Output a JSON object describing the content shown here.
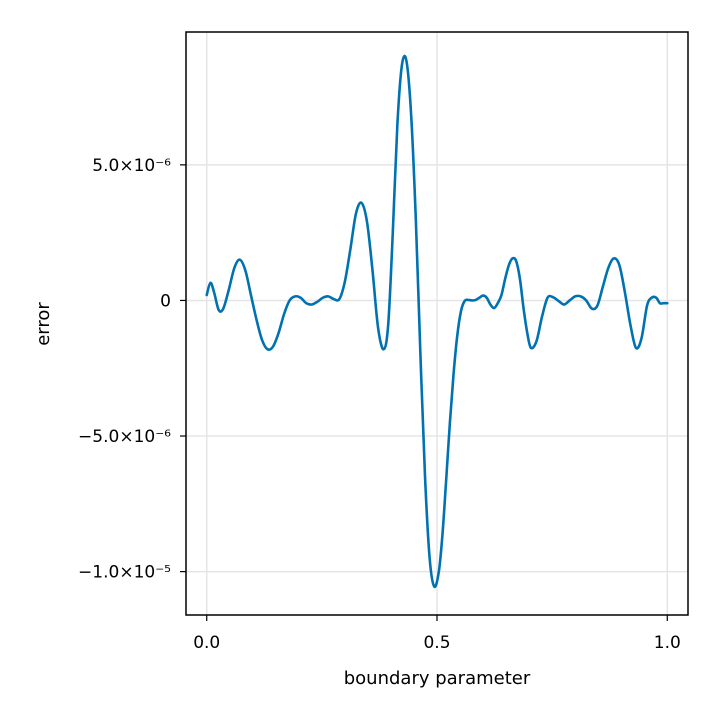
{
  "chart_data": {
    "type": "line",
    "title": "",
    "xlabel": "boundary parameter",
    "ylabel": "error",
    "xlim": [
      -0.045,
      1.045
    ],
    "ylim": [
      -1.16e-05,
      9.9e-06
    ],
    "grid": true,
    "x_ticks": [
      {
        "value": 0.0,
        "label": "0.0"
      },
      {
        "value": 0.5,
        "label": "0.5"
      },
      {
        "value": 1.0,
        "label": "1.0"
      }
    ],
    "y_ticks": [
      {
        "value": 5e-06,
        "label": "5.0×10⁻⁶"
      },
      {
        "value": 0,
        "label": "0"
      },
      {
        "value": -5e-06,
        "label": "−5.0×10⁻⁶"
      },
      {
        "value": -1e-05,
        "label": "−1.0×10⁻⁵"
      }
    ],
    "line_color": "#0072b2",
    "grid_color": "#e5e5e5",
    "series": [
      {
        "x": [
          0.0,
          0.008,
          0.016,
          0.026,
          0.036,
          0.048,
          0.06,
          0.072,
          0.084,
          0.096,
          0.108,
          0.12,
          0.132,
          0.144,
          0.156,
          0.168,
          0.18,
          0.192,
          0.204,
          0.216,
          0.228,
          0.24,
          0.252,
          0.264,
          0.276,
          0.288,
          0.3,
          0.312,
          0.324,
          0.336,
          0.348,
          0.36,
          0.372,
          0.384,
          0.394,
          0.404,
          0.414,
          0.424,
          0.434,
          0.444,
          0.454,
          0.464,
          0.474,
          0.484,
          0.494,
          0.504,
          0.512,
          0.52,
          0.528,
          0.536,
          0.544,
          0.552,
          0.56,
          0.568,
          0.576,
          0.584,
          0.592,
          0.6,
          0.608,
          0.616,
          0.624,
          0.632,
          0.64,
          0.648,
          0.656,
          0.664,
          0.672,
          0.68,
          0.688,
          0.696,
          0.704,
          0.716,
          0.728,
          0.74,
          0.752,
          0.764,
          0.776,
          0.788,
          0.8,
          0.812,
          0.824,
          0.836,
          0.848,
          0.86,
          0.872,
          0.884,
          0.896,
          0.908,
          0.92,
          0.932,
          0.944,
          0.956,
          0.966,
          0.976,
          0.984,
          0.992,
          1.0
        ],
        "y": [
          2e-07,
          6.5e-07,
          3e-07,
          -3.5e-07,
          -3e-07,
          4e-07,
          1.2e-06,
          1.5e-06,
          1.1e-06,
          2e-07,
          -7e-07,
          -1.45e-06,
          -1.8e-06,
          -1.7e-06,
          -1.2e-06,
          -5e-07,
          0.0,
          1.5e-07,
          1e-07,
          -1e-07,
          -1.5e-07,
          -5e-08,
          1e-07,
          1.5e-07,
          5e-08,
          5e-08,
          7e-07,
          1.9e-06,
          3.2e-06,
          3.6e-06,
          2.9e-06,
          1.1e-06,
          -1e-06,
          -1.8e-06,
          -9e-07,
          2.5e-06,
          6.5e-06,
          8.7e-06,
          8.8e-06,
          6.8e-06,
          3e-06,
          -2e-06,
          -6.5e-06,
          -9.5e-06,
          -1.055e-05,
          -1e-05,
          -8.6e-06,
          -6.6e-06,
          -4.5e-06,
          -2.7e-06,
          -1.3e-06,
          -4e-07,
          -2e-08,
          2e-08,
          0.0,
          2e-08,
          1e-07,
          1.8e-07,
          1e-07,
          -1.5e-07,
          -2.8e-07,
          -1e-07,
          2e-07,
          8e-07,
          1.3e-06,
          1.55e-06,
          1.45e-06,
          8e-07,
          -3e-07,
          -1.2e-06,
          -1.75e-06,
          -1.5e-06,
          -6e-07,
          1e-07,
          1.2e-07,
          -2e-08,
          -1.5e-07,
          0.0,
          1.5e-07,
          1.5e-07,
          0.0,
          -3e-07,
          -2e-07,
          5e-07,
          1.2e-06,
          1.55e-06,
          1.3e-06,
          3e-07,
          -9e-07,
          -1.75e-06,
          -1.4e-06,
          -2e-07,
          1e-07,
          1e-07,
          -1e-07,
          -1e-07,
          -1e-07
        ]
      }
    ]
  }
}
